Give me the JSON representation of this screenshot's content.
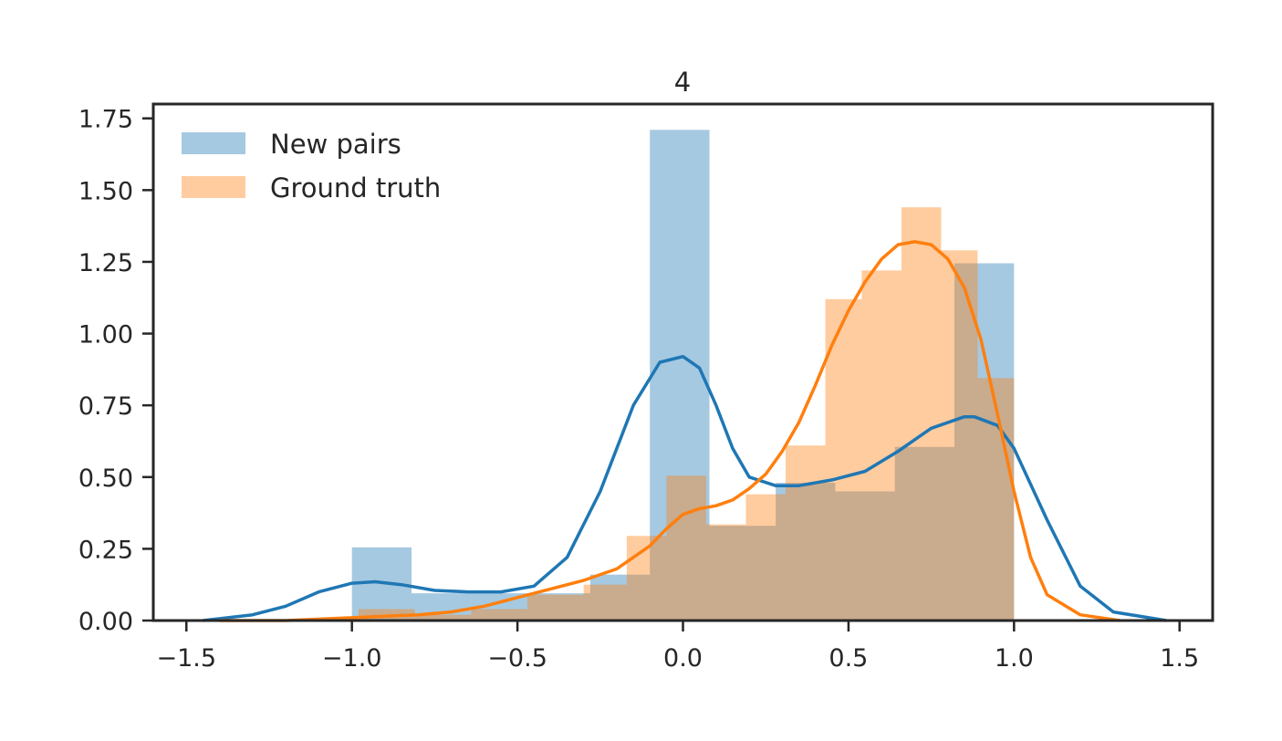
{
  "chart_data": {
    "type": "histogram",
    "title": "4",
    "xlabel": "",
    "ylabel": "",
    "xlim": [
      -1.6,
      1.6
    ],
    "ylim": [
      0,
      1.8
    ],
    "grid": false,
    "legend_position": "top-left",
    "x_ticks": [
      -1.5,
      -1.0,
      -0.5,
      0.0,
      0.5,
      1.0,
      1.5
    ],
    "x_tick_labels": [
      "−1.5",
      "−1.0",
      "−0.5",
      "0.0",
      "0.5",
      "1.0",
      "1.5"
    ],
    "y_ticks": [
      0,
      0.25,
      0.5,
      0.75,
      1.0,
      1.25,
      1.5,
      1.75
    ],
    "y_tick_labels": [
      "0.00",
      "0.25",
      "0.50",
      "0.75",
      "1.00",
      "1.25",
      "1.50",
      "1.75"
    ],
    "series": [
      {
        "name": "New pairs",
        "color": "#1f77b4",
        "bins": [
          {
            "x0": -1.0,
            "x1": -0.82,
            "density": 0.255
          },
          {
            "x0": -0.82,
            "x1": -0.64,
            "density": 0.095
          },
          {
            "x0": -0.64,
            "x1": -0.46,
            "density": 0.095
          },
          {
            "x0": -0.46,
            "x1": -0.28,
            "density": 0.095
          },
          {
            "x0": -0.28,
            "x1": -0.1,
            "density": 0.16
          },
          {
            "x0": -0.1,
            "x1": 0.08,
            "density": 1.71
          },
          {
            "x0": 0.08,
            "x1": 0.28,
            "density": 0.33
          },
          {
            "x0": 0.28,
            "x1": 0.46,
            "density": 0.48
          },
          {
            "x0": 0.46,
            "x1": 0.64,
            "density": 0.45
          },
          {
            "x0": 0.64,
            "x1": 0.82,
            "density": 0.605
          },
          {
            "x0": 0.82,
            "x1": 1.0,
            "density": 1.245
          }
        ],
        "kde": {
          "x": [
            -1.45,
            -1.3,
            -1.2,
            -1.1,
            -1.0,
            -0.93,
            -0.85,
            -0.75,
            -0.65,
            -0.55,
            -0.45,
            -0.35,
            -0.25,
            -0.15,
            -0.07,
            0.0,
            0.05,
            0.1,
            0.15,
            0.2,
            0.28,
            0.35,
            0.45,
            0.55,
            0.65,
            0.75,
            0.85,
            0.88,
            0.95,
            1.0,
            1.1,
            1.2,
            1.3,
            1.46
          ],
          "y": [
            0.0,
            0.02,
            0.05,
            0.1,
            0.13,
            0.135,
            0.125,
            0.105,
            0.1,
            0.1,
            0.12,
            0.22,
            0.45,
            0.75,
            0.9,
            0.92,
            0.88,
            0.75,
            0.6,
            0.5,
            0.47,
            0.47,
            0.49,
            0.52,
            0.59,
            0.67,
            0.71,
            0.71,
            0.68,
            0.6,
            0.35,
            0.12,
            0.03,
            0.0
          ]
        }
      },
      {
        "name": "Ground truth",
        "color": "#ff7f0e",
        "bins": [
          {
            "x0": -0.98,
            "x1": -0.81,
            "density": 0.04
          },
          {
            "x0": -0.81,
            "x1": -0.64,
            "density": 0.02
          },
          {
            "x0": -0.64,
            "x1": -0.47,
            "density": 0.04
          },
          {
            "x0": -0.47,
            "x1": -0.3,
            "density": 0.09
          },
          {
            "x0": -0.3,
            "x1": -0.17,
            "density": 0.125
          },
          {
            "x0": -0.17,
            "x1": -0.05,
            "density": 0.295
          },
          {
            "x0": -0.05,
            "x1": 0.07,
            "density": 0.505
          },
          {
            "x0": 0.07,
            "x1": 0.19,
            "density": 0.335
          },
          {
            "x0": 0.19,
            "x1": 0.31,
            "density": 0.44
          },
          {
            "x0": 0.31,
            "x1": 0.43,
            "density": 0.61
          },
          {
            "x0": 0.43,
            "x1": 0.54,
            "density": 1.12
          },
          {
            "x0": 0.54,
            "x1": 0.66,
            "density": 1.22
          },
          {
            "x0": 0.66,
            "x1": 0.78,
            "density": 1.44
          },
          {
            "x0": 0.78,
            "x1": 0.89,
            "density": 1.29
          },
          {
            "x0": 0.89,
            "x1": 1.0,
            "density": 0.845
          }
        ],
        "kde": {
          "x": [
            -1.4,
            -1.2,
            -1.0,
            -0.9,
            -0.8,
            -0.7,
            -0.6,
            -0.5,
            -0.4,
            -0.3,
            -0.2,
            -0.1,
            -0.05,
            0.0,
            0.05,
            0.1,
            0.15,
            0.2,
            0.25,
            0.3,
            0.35,
            0.4,
            0.45,
            0.5,
            0.55,
            0.6,
            0.65,
            0.7,
            0.75,
            0.8,
            0.85,
            0.9,
            0.95,
            1.0,
            1.05,
            1.1,
            1.2,
            1.32
          ],
          "y": [
            0.0,
            0.0,
            0.01,
            0.015,
            0.02,
            0.03,
            0.05,
            0.08,
            0.11,
            0.14,
            0.18,
            0.26,
            0.32,
            0.37,
            0.39,
            0.4,
            0.42,
            0.46,
            0.51,
            0.59,
            0.69,
            0.82,
            0.96,
            1.08,
            1.18,
            1.26,
            1.31,
            1.32,
            1.31,
            1.26,
            1.16,
            0.98,
            0.72,
            0.45,
            0.22,
            0.09,
            0.02,
            0.0
          ]
        }
      }
    ]
  }
}
